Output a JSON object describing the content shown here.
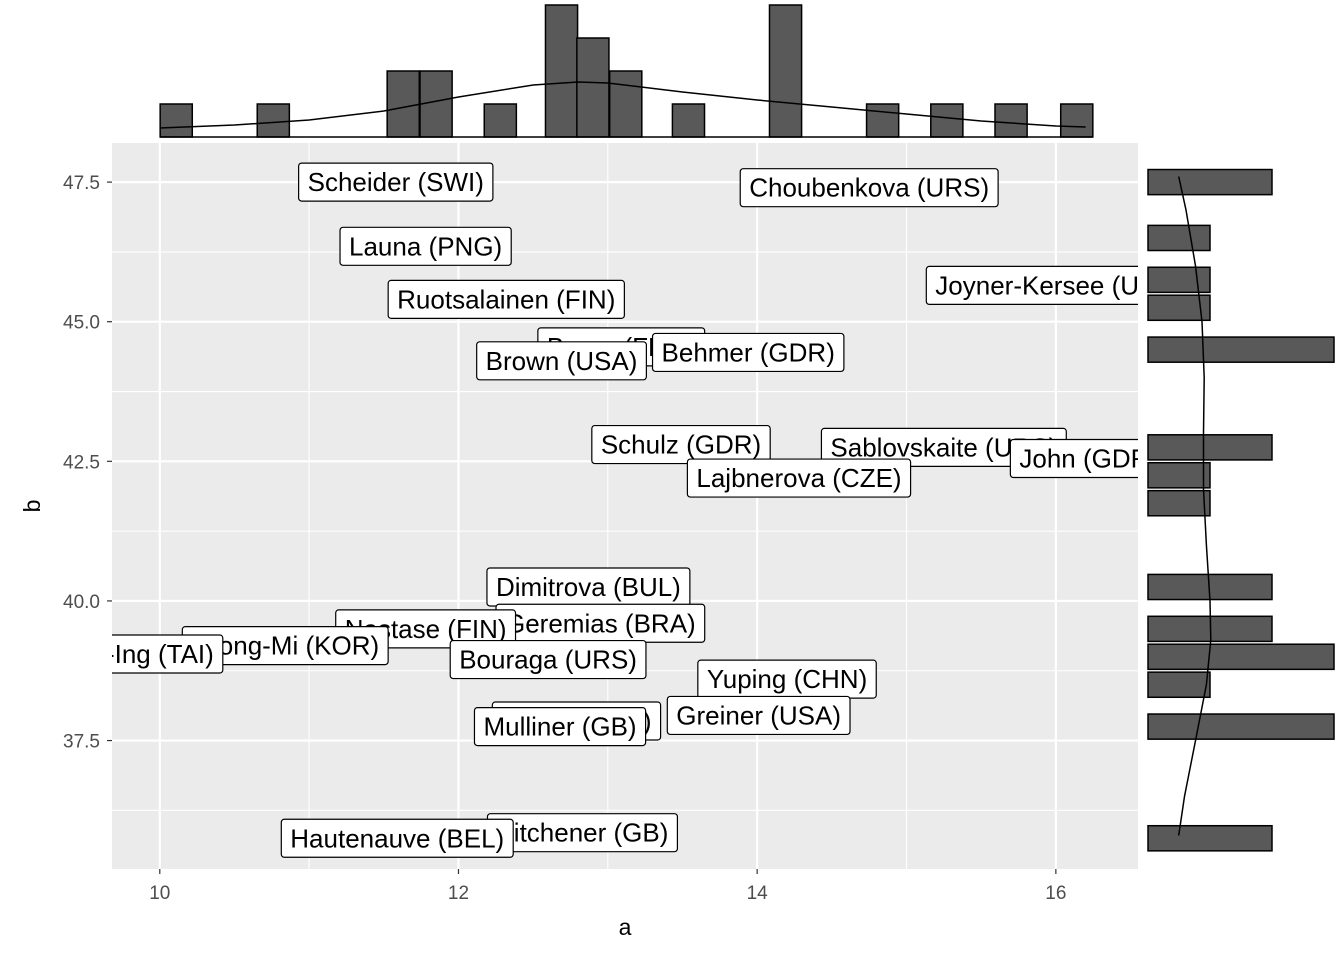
{
  "chart_data": {
    "type": "scatter",
    "subtype": "labelled scatter with marginal histograms and density curves",
    "xlabel": "a",
    "ylabel": "b",
    "xlim": [
      9.68,
      16.55
    ],
    "ylim": [
      35.2,
      48.2
    ],
    "x_ticks": [
      10,
      12,
      14,
      16
    ],
    "x_tick_labels": [
      "10",
      "12",
      "14",
      "16"
    ],
    "y_ticks": [
      37.5,
      40.0,
      42.5,
      45.0,
      47.5
    ],
    "y_tick_labels": [
      "37.5",
      "40.0",
      "42.5",
      "45.0",
      "47.5"
    ],
    "grid": true,
    "legend": "none",
    "panel_color": "#ebebeb",
    "bar_color": "#595959",
    "points": [
      {
        "label": "Scheider (SWI)",
        "x": 11.58,
        "y": 47.5
      },
      {
        "label": "Choubenkova (URS)",
        "x": 14.75,
        "y": 47.4
      },
      {
        "label": "Launa (PNG)",
        "x": 11.78,
        "y": 46.35
      },
      {
        "label": "Joyner-Kersee (USA)",
        "x": 16.02,
        "y": 45.65
      },
      {
        "label": "Ruotsalainen (FIN)",
        "x": 12.32,
        "y": 45.4
      },
      {
        "label": "Braun (FRG)",
        "x": 13.09,
        "y": 44.55
      },
      {
        "label": "Behmer (GDR)",
        "x": 13.94,
        "y": 44.45
      },
      {
        "label": "Brown (USA)",
        "x": 12.69,
        "y": 44.3
      },
      {
        "label": "Schulz (GDR)",
        "x": 13.49,
        "y": 42.8
      },
      {
        "label": "Sablovskaite (URS)",
        "x": 15.25,
        "y": 42.75
      },
      {
        "label": "John (GDR)",
        "x": 16.22,
        "y": 42.55
      },
      {
        "label": "Lajbnerova (CZE)",
        "x": 14.28,
        "y": 42.2
      },
      {
        "label": "Dimitrova (BUL)",
        "x": 12.87,
        "y": 40.25
      },
      {
        "label": "Geremias (BRA)",
        "x": 12.95,
        "y": 39.6
      },
      {
        "label": "Nastase (FIN)",
        "x": 11.78,
        "y": 39.5
      },
      {
        "label": "Jeong-Mi (KOR)",
        "x": 10.84,
        "y": 39.2
      },
      {
        "label": "Hui-Ing (TAI)",
        "x": 9.87,
        "y": 39.05
      },
      {
        "label": "Bouraga (URS)",
        "x": 12.6,
        "y": 38.95
      },
      {
        "label": "Yuping (CHN)",
        "x": 14.2,
        "y": 38.6
      },
      {
        "label": "Greiner (USA)",
        "x": 14.01,
        "y": 37.95
      },
      {
        "label": "Kytola (HOL)",
        "x": 12.79,
        "y": 37.85
      },
      {
        "label": "Mulliner (GB)",
        "x": 12.68,
        "y": 37.75
      },
      {
        "label": "Kitchener (GB)",
        "x": 12.83,
        "y": 35.85
      },
      {
        "label": "Hautenauve (BEL)",
        "x": 11.59,
        "y": 35.75
      }
    ],
    "x_histogram": {
      "bin_centers": [
        10.11,
        10.76,
        11.63,
        11.85,
        12.28,
        12.69,
        12.9,
        13.12,
        13.54,
        14.19,
        14.84,
        15.27,
        15.7,
        16.14
      ],
      "bin_width": 0.215,
      "counts": [
        1,
        1,
        2,
        2,
        1,
        4,
        3,
        2,
        1,
        4,
        1,
        1,
        1,
        1
      ],
      "density_x": [
        10.0,
        10.5,
        11.0,
        11.5,
        12.0,
        12.5,
        12.8,
        13.0,
        13.5,
        14.0,
        14.5,
        15.0,
        15.5,
        16.0,
        16.2
      ],
      "density_y": [
        0.09,
        0.12,
        0.17,
        0.26,
        0.4,
        0.52,
        0.55,
        0.54,
        0.45,
        0.37,
        0.3,
        0.23,
        0.16,
        0.11,
        0.1
      ]
    },
    "y_histogram": {
      "bin_centers": [
        47.5,
        46.5,
        45.75,
        45.25,
        44.5,
        42.75,
        42.25,
        41.75,
        40.25,
        39.5,
        39.0,
        38.5,
        37.75,
        35.75
      ],
      "bin_height": 0.45,
      "counts": [
        2,
        1,
        1,
        1,
        3,
        2,
        1,
        1,
        2,
        2,
        3,
        1,
        3,
        2
      ],
      "density_y": [
        35.8,
        36.5,
        37.5,
        38.5,
        39.3,
        40.0,
        41.0,
        42.0,
        43.0,
        44.0,
        45.0,
        46.0,
        47.0,
        47.6
      ],
      "density_x": [
        0.42,
        0.5,
        0.65,
        0.8,
        0.86,
        0.85,
        0.8,
        0.76,
        0.76,
        0.77,
        0.74,
        0.65,
        0.52,
        0.42
      ]
    }
  }
}
